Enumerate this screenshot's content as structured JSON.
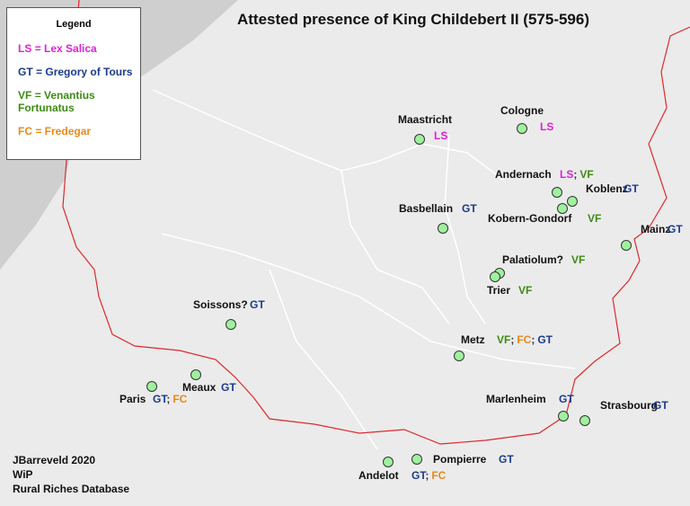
{
  "header": {
    "title": "Attested presence of King Childebert II (575-596)"
  },
  "legend": {
    "title": "Legend",
    "entries": [
      {
        "code": "LS",
        "text": "= Lex Salica",
        "color": "#e020d8"
      },
      {
        "code": "GT",
        "text": "= Gregory of Tours",
        "color": "#1a3a8c"
      },
      {
        "code": "VF",
        "text": "= Venantius Fortunatus",
        "color": "#3f8a14"
      },
      {
        "code": "FC",
        "text": "= Fredegar",
        "color": "#e88a1a"
      }
    ]
  },
  "source_separator": ";",
  "places": [
    {
      "name": "Maastricht",
      "sources": [
        "LS"
      ]
    },
    {
      "name": "Cologne",
      "sources": [
        "LS"
      ]
    },
    {
      "name": "Andernach",
      "sources": [
        "LS",
        "VF"
      ]
    },
    {
      "name": "Koblenz",
      "sources": [
        "GT"
      ]
    },
    {
      "name": "Kobern-Gondorf",
      "sources": [
        "VF"
      ]
    },
    {
      "name": "Basbellain",
      "sources": [
        "GT"
      ]
    },
    {
      "name": "Mainz",
      "sources": [
        "GT"
      ]
    },
    {
      "name": "Palatiolum?",
      "sources": [
        "VF"
      ]
    },
    {
      "name": "Trier",
      "sources": [
        "VF"
      ]
    },
    {
      "name": "Soissons?",
      "sources": [
        "GT"
      ]
    },
    {
      "name": "Metz",
      "sources": [
        "VF",
        "FC",
        "GT"
      ]
    },
    {
      "name": "Meaux",
      "sources": [
        "GT"
      ]
    },
    {
      "name": "Paris",
      "sources": [
        "GT",
        "FC"
      ]
    },
    {
      "name": "Marlenheim",
      "sources": [
        "GT"
      ]
    },
    {
      "name": "Strasbourg",
      "sources": [
        "GT"
      ]
    },
    {
      "name": "Pompierre",
      "sources": [
        "GT"
      ]
    },
    {
      "name": "Andelot",
      "sources": [
        "GT",
        "FC"
      ]
    }
  ],
  "credits": [
    "JBarreveld 2020",
    "WiP",
    "Rural Riches Database"
  ]
}
